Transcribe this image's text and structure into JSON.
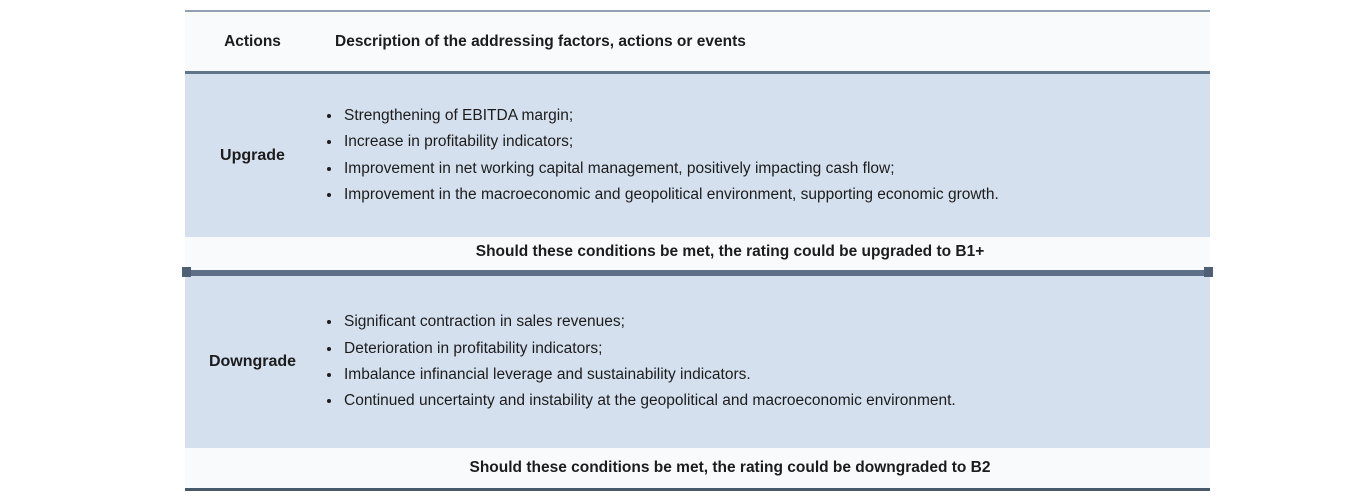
{
  "table": {
    "header": {
      "actions": "Actions",
      "description": "Description of the addressing factors, actions or events"
    },
    "sections": [
      {
        "action": "Upgrade",
        "bullets": [
          "Strengthening of EBITDA margin;",
          "Increase in profitability indicators;",
          "Improvement in net working capital management, positively impacting cash flow;",
          "Improvement in the macroeconomic and geopolitical environment,  supporting economic growth."
        ],
        "outcome": "Should these conditions be met, the rating could be upgraded to B1+"
      },
      {
        "action": "Downgrade",
        "bullets": [
          "Significant contraction in sales revenues;",
          "Deterioration in profitability indicators;",
          "Imbalance infinancial leverage and sustainability indicators.",
          "Continued uncertainty and instability at the geopolitical and macroeconomic environment."
        ],
        "outcome": "Should these conditions be met, the rating could be downgraded to B2"
      }
    ]
  },
  "colors": {
    "row_blue": "#d5e0ef",
    "row_light": "#f8fafc",
    "divider": "#5d7087",
    "divider_cap": "#4e5f76",
    "border_top": "#90a0b0",
    "border_header": "#60758a",
    "border_bottom": "#48596b",
    "text": "#1c1c1c"
  }
}
